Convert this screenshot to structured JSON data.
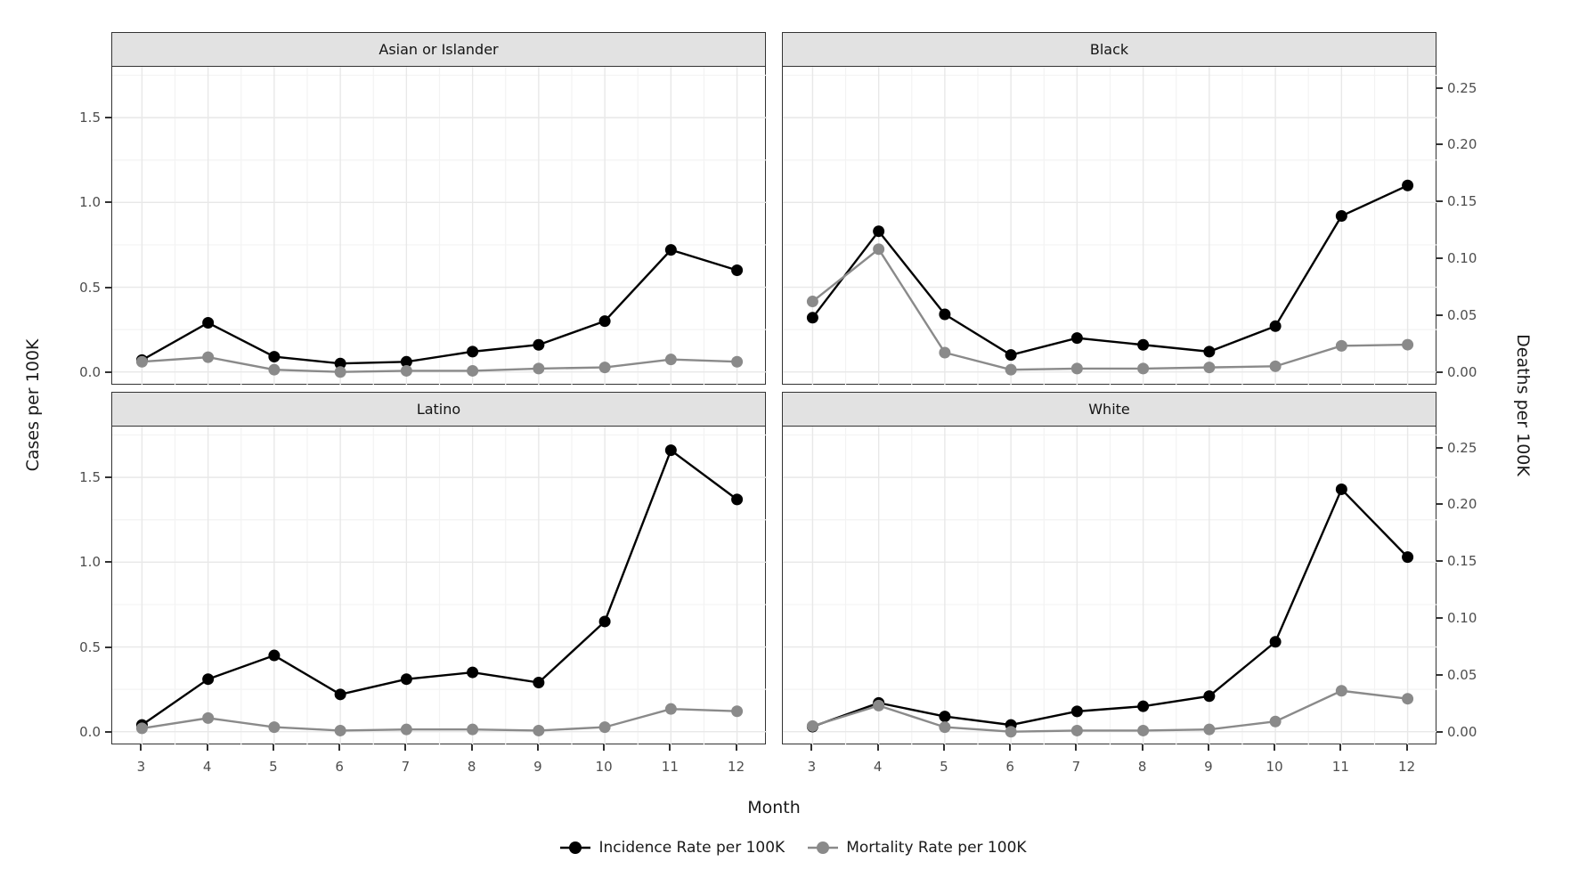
{
  "chart_data": {
    "type": "line",
    "title": "",
    "xlabel": "Month",
    "ylabel_left": "Cases per 100K",
    "ylabel_right": "Deaths per 100K",
    "x": [
      3,
      4,
      5,
      6,
      7,
      8,
      9,
      10,
      11,
      12
    ],
    "x_tick_labels": [
      "3",
      "4",
      "5",
      "6",
      "7",
      "8",
      "9",
      "10",
      "11",
      "12"
    ],
    "left_axis": {
      "ticks": [
        0.0,
        0.5,
        1.0,
        1.5
      ],
      "tick_labels": [
        "0.0",
        "0.5",
        "1.0",
        "1.5"
      ],
      "ylim": [
        -0.075,
        1.8
      ]
    },
    "right_axis": {
      "ticks": [
        0.0,
        0.05,
        0.1,
        0.15,
        0.2,
        0.25
      ],
      "tick_labels": [
        "0.00",
        "0.05",
        "0.10",
        "0.15",
        "0.20",
        "0.25"
      ],
      "ylim": [
        0.0,
        0.268
      ],
      "cases_per_death_unit": 6.706
    },
    "grid": true,
    "legend_position": "bottom",
    "facets": [
      {
        "title": "Asian or Islander",
        "series": [
          {
            "name": "Incidence Rate per 100K",
            "axis": "left",
            "values": [
              0.07,
              0.29,
              0.09,
              0.05,
              0.06,
              0.12,
              0.16,
              0.3,
              0.72,
              0.6
            ]
          },
          {
            "name": "Mortality Rate per 100K",
            "axis": "right",
            "values": [
              0.009,
              0.013,
              0.002,
              0.0,
              0.001,
              0.001,
              0.003,
              0.004,
              0.011,
              0.009
            ]
          }
        ]
      },
      {
        "title": "Black",
        "series": [
          {
            "name": "Incidence Rate per 100K",
            "axis": "left",
            "values": [
              0.32,
              0.83,
              0.34,
              0.1,
              0.2,
              0.16,
              0.12,
              0.27,
              0.92,
              1.1
            ]
          },
          {
            "name": "Mortality Rate per 100K",
            "axis": "right",
            "values": [
              0.062,
              0.108,
              0.017,
              0.002,
              0.003,
              0.003,
              0.004,
              0.005,
              0.023,
              0.024
            ]
          }
        ]
      },
      {
        "title": "Latino",
        "series": [
          {
            "name": "Incidence Rate per 100K",
            "axis": "left",
            "values": [
              0.04,
              0.31,
              0.45,
              0.22,
              0.31,
              0.35,
              0.29,
              0.65,
              1.66,
              1.37
            ]
          },
          {
            "name": "Mortality Rate per 100K",
            "axis": "right",
            "values": [
              0.003,
              0.012,
              0.004,
              0.001,
              0.002,
              0.002,
              0.001,
              0.004,
              0.02,
              0.018
            ]
          }
        ]
      },
      {
        "title": "White",
        "series": [
          {
            "name": "Incidence Rate per 100K",
            "axis": "left",
            "values": [
              0.03,
              0.17,
              0.09,
              0.04,
              0.12,
              0.15,
              0.21,
              0.53,
              1.43,
              1.03
            ]
          },
          {
            "name": "Mortality Rate per 100K",
            "axis": "right",
            "values": [
              0.005,
              0.023,
              0.004,
              0.0,
              0.001,
              0.001,
              0.002,
              0.009,
              0.036,
              0.029
            ]
          }
        ]
      }
    ],
    "legend": [
      {
        "label": "Incidence Rate per 100K",
        "color": "#000000"
      },
      {
        "label": "Mortality Rate per 100K",
        "color": "#8A8A8A"
      }
    ]
  },
  "colors": {
    "incidence": "#000000",
    "mortality": "#8A8A8A",
    "strip_bg": "#E2E2E2",
    "panel_border": "#333333",
    "grid_major": "#E8E8E8",
    "grid_minor": "#F3F3F3",
    "tick_text": "#4D4D4D",
    "axis_title_text": "#1A1A1A"
  }
}
